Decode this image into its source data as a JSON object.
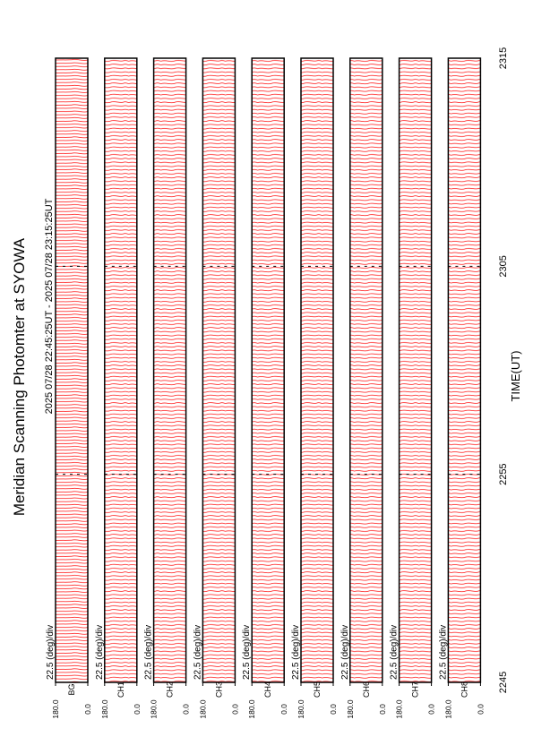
{
  "chart_data": {
    "type": "msp",
    "title": "Meridian Scanning Photomter at SYOWA",
    "subtitle": "2025 07/28 22:45:25UT - 2025 07/28 23:15:25UT",
    "xlabel": "TIME(UT)",
    "xticks": [
      "2245",
      "2255",
      "2305",
      "2315"
    ],
    "ylim": [
      0,
      180
    ],
    "yticks": [
      {
        "value": 0,
        "label": "0.0"
      },
      {
        "value": 180,
        "label": "180.0"
      }
    ],
    "scale_label": "22.5 (deg)/div",
    "channels": [
      "BG",
      "CH1",
      "CH2",
      "CH3",
      "CH4",
      "CH5",
      "CH6",
      "CH7",
      "CH8"
    ],
    "color": "#ff0000"
  }
}
